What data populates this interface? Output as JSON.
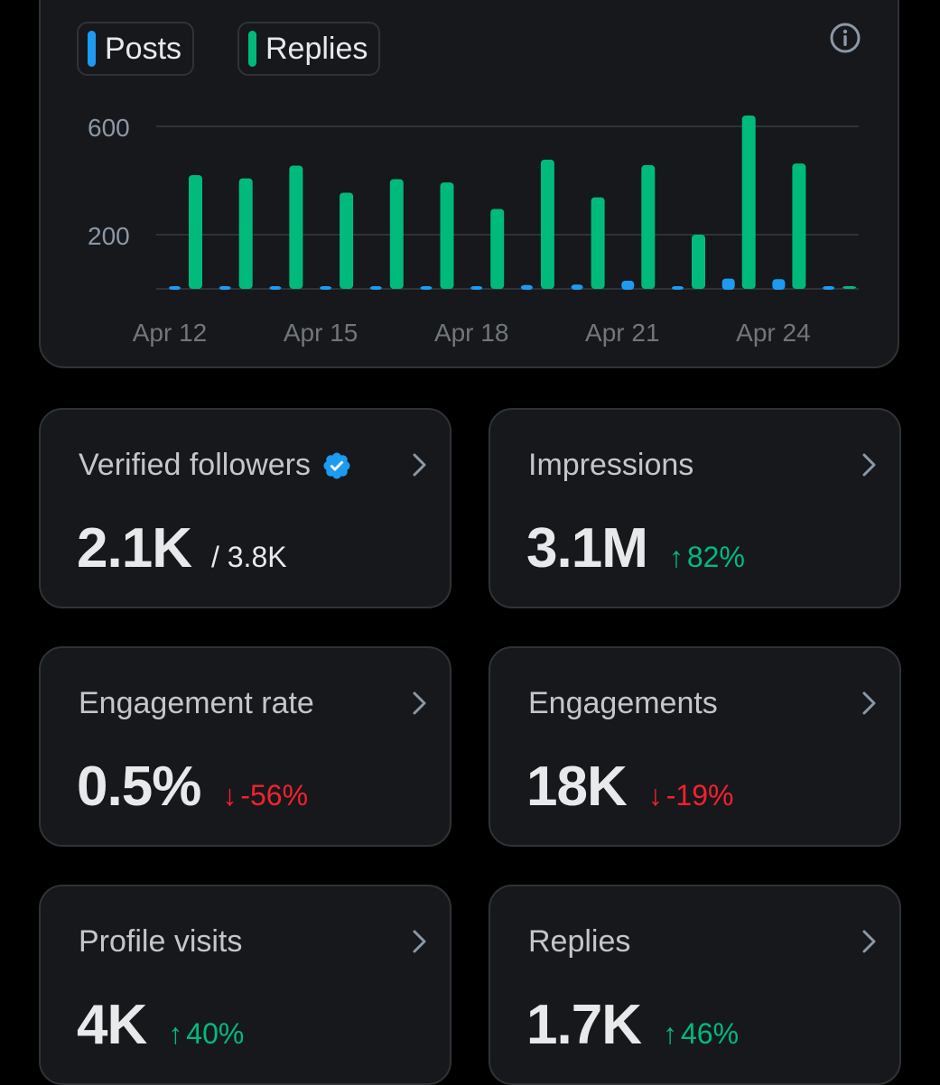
{
  "chart": {
    "legend": [
      {
        "label": "Posts",
        "color": "#1d9bf0"
      },
      {
        "label": "Replies",
        "color": "#00ba7c"
      }
    ],
    "info_icon": "info-icon"
  },
  "chart_data": {
    "type": "bar",
    "categories": [
      "Apr 12",
      "Apr 13",
      "Apr 14",
      "Apr 15",
      "Apr 16",
      "Apr 17",
      "Apr 18",
      "Apr 19",
      "Apr 20",
      "Apr 21",
      "Apr 22",
      "Apr 23",
      "Apr 24",
      "Apr 25"
    ],
    "x_tick_labels": [
      "Apr 12",
      "Apr 15",
      "Apr 18",
      "Apr 21",
      "Apr 24"
    ],
    "y_tick_labels": [
      "600",
      "200"
    ],
    "ylim": [
      0,
      660
    ],
    "grid": true,
    "series": [
      {
        "name": "Posts",
        "color": "#1d9bf0",
        "values": [
          5,
          5,
          3,
          6,
          8,
          3,
          7,
          14,
          16,
          30,
          6,
          38,
          36,
          0
        ]
      },
      {
        "name": "Replies",
        "color": "#00ba7c",
        "values": [
          420,
          408,
          455,
          355,
          405,
          393,
          295,
          477,
          338,
          457,
          200,
          640,
          463,
          8
        ]
      }
    ]
  },
  "stats": [
    {
      "key": "verified_followers",
      "title": "Verified followers",
      "value": "2.1K",
      "sub": "/ 3.8K",
      "verified": true
    },
    {
      "key": "impressions",
      "title": "Impressions",
      "value": "3.1M",
      "arrow": "↑",
      "change": "82%",
      "direction": "up"
    },
    {
      "key": "engagement_rate",
      "title": "Engagement rate",
      "value": "0.5%",
      "arrow": "↓",
      "change": "-56%",
      "direction": "down"
    },
    {
      "key": "engagements",
      "title": "Engagements",
      "value": "18K",
      "arrow": "↓",
      "change": "-19%",
      "direction": "down"
    },
    {
      "key": "profile_visits",
      "title": "Profile visits",
      "value": "4K",
      "arrow": "↑",
      "change": "40%",
      "direction": "up"
    },
    {
      "key": "replies",
      "title": "Replies",
      "value": "1.7K",
      "arrow": "↑",
      "change": "46%",
      "direction": "up"
    }
  ]
}
